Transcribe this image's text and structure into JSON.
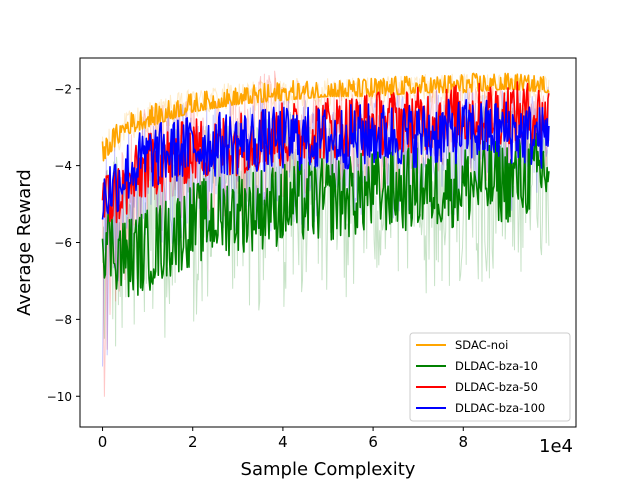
{
  "chart_data": {
    "type": "line",
    "title": "",
    "xlabel": "Sample Complexity",
    "ylabel": "Average Reward",
    "x_offset_label": "1e4",
    "xlim": [
      -0.5,
      10.5
    ],
    "ylim": [
      -10.8,
      -1.2
    ],
    "xticks": [
      0,
      2,
      4,
      6,
      8
    ],
    "xtick_labels": [
      "0",
      "2",
      "4",
      "6",
      "8"
    ],
    "yticks": [
      -10,
      -8,
      -6,
      -4,
      -2
    ],
    "ytick_labels": [
      "−10",
      "−8",
      "−6",
      "−4",
      "−2"
    ],
    "grid": false,
    "legend_position": "lower right",
    "x_range": [
      0,
      9.9
    ],
    "series": [
      {
        "name": "SDAC-noi",
        "color": "#ffa500",
        "band": {
          "x": [
            0,
            0.5,
            1,
            2,
            3,
            4,
            5,
            6,
            7,
            8,
            9,
            9.9
          ],
          "low": [
            -4.2,
            -3.5,
            -3.3,
            -2.9,
            -2.7,
            -2.6,
            -2.5,
            -2.5,
            -2.4,
            -2.4,
            -2.3,
            -2.4
          ],
          "high": [
            -3.2,
            -2.6,
            -2.3,
            -2.0,
            -1.8,
            -1.7,
            -1.7,
            -1.7,
            -1.6,
            -1.6,
            -1.6,
            -1.7
          ]
        },
        "points": {
          "x": [
            0,
            0.5,
            1,
            2,
            3,
            4,
            5,
            6,
            7,
            8,
            9,
            9.9
          ],
          "y": [
            -3.7,
            -3.0,
            -2.8,
            -2.45,
            -2.3,
            -2.15,
            -2.1,
            -2.05,
            -2.0,
            -1.95,
            -1.9,
            -2.0
          ]
        }
      },
      {
        "name": "DLDAC-bza-10",
        "color": "#008000",
        "band": {
          "x": [
            0,
            0.5,
            1,
            2,
            3,
            4,
            5,
            6,
            7,
            8,
            9,
            9.9
          ],
          "low": [
            -9.5,
            -9.0,
            -8.6,
            -8.5,
            -8.2,
            -7.8,
            -7.6,
            -7.4,
            -7.4,
            -7.3,
            -7.2,
            -6.4
          ],
          "high": [
            -3.8,
            -3.6,
            -3.0,
            -2.9,
            -2.8,
            -2.6,
            -2.6,
            -2.6,
            -2.5,
            -2.5,
            -2.4,
            -2.3
          ]
        },
        "points": {
          "x": [
            0,
            0.5,
            1,
            2,
            3,
            4,
            5,
            6,
            7,
            8,
            9,
            9.9
          ],
          "y": [
            -5.8,
            -6.4,
            -6.2,
            -5.5,
            -5.2,
            -5.0,
            -4.9,
            -4.7,
            -4.6,
            -4.5,
            -4.4,
            -4.1
          ]
        }
      },
      {
        "name": "DLDAC-bza-50",
        "color": "#ff0000",
        "band": {
          "x": [
            0,
            0.5,
            1,
            2,
            3,
            4,
            5,
            6,
            7,
            8,
            9,
            9.9
          ],
          "low": [
            -10.4,
            -7.4,
            -6.7,
            -6.0,
            -5.5,
            -5.2,
            -5.0,
            -4.9,
            -4.7,
            -4.6,
            -4.5,
            -4.0
          ],
          "high": [
            -3.6,
            -3.2,
            -2.4,
            -2.1,
            -1.9,
            -1.4,
            -2.0,
            -2.0,
            -1.9,
            -1.9,
            -1.8,
            -1.9
          ]
        },
        "points": {
          "x": [
            0,
            0.5,
            1,
            2,
            3,
            4,
            5,
            6,
            7,
            8,
            9,
            9.9
          ],
          "y": [
            -5.0,
            -4.6,
            -4.0,
            -3.6,
            -3.4,
            -3.2,
            -3.0,
            -2.9,
            -2.8,
            -2.7,
            -2.6,
            -2.7
          ]
        }
      },
      {
        "name": "DLDAC-bza-100",
        "color": "#0000ff",
        "band": {
          "x": [
            0,
            0.5,
            1,
            2,
            3,
            4,
            5,
            6,
            7,
            8,
            9,
            9.9
          ],
          "low": [
            -9.7,
            -7.0,
            -6.4,
            -6.2,
            -5.9,
            -5.8,
            -5.6,
            -5.5,
            -5.4,
            -5.3,
            -5.2,
            -5.0
          ],
          "high": [
            -3.6,
            -3.2,
            -2.6,
            -2.3,
            -2.2,
            -2.1,
            -2.2,
            -2.1,
            -2.0,
            -2.0,
            -2.0,
            -1.9
          ]
        },
        "points": {
          "x": [
            0,
            0.5,
            1,
            2,
            3,
            4,
            5,
            6,
            7,
            8,
            9,
            9.9
          ],
          "y": [
            -4.8,
            -4.2,
            -3.8,
            -3.5,
            -3.4,
            -3.3,
            -3.3,
            -3.2,
            -3.2,
            -3.1,
            -3.1,
            -3.3
          ]
        }
      }
    ]
  }
}
